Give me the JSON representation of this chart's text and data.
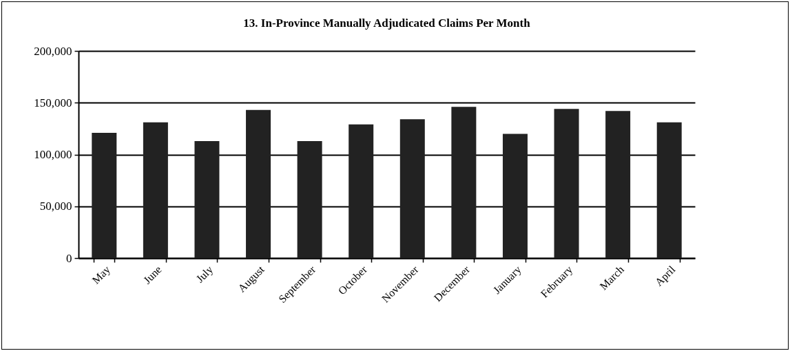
{
  "chart_data": {
    "type": "bar",
    "title": "13. In-Province Manually Adjudicated Claims Per Month",
    "categories": [
      "May",
      "June",
      "July",
      "August",
      "September",
      "October",
      "November",
      "December",
      "January",
      "February",
      "March",
      "April"
    ],
    "values": [
      121000,
      131000,
      113000,
      143000,
      113000,
      129000,
      134000,
      146000,
      120000,
      144000,
      142000,
      131000
    ],
    "color": "#222222",
    "ylim": [
      0,
      200000
    ],
    "yticks": [
      0,
      {
        "value": 50000,
        "label": "50,000"
      },
      {
        "value": 100000,
        "label": "100,000"
      },
      {
        "value": 150000,
        "label": "150,000"
      },
      {
        "value": 200000,
        "label": "200,000"
      }
    ],
    "grid": "y"
  }
}
